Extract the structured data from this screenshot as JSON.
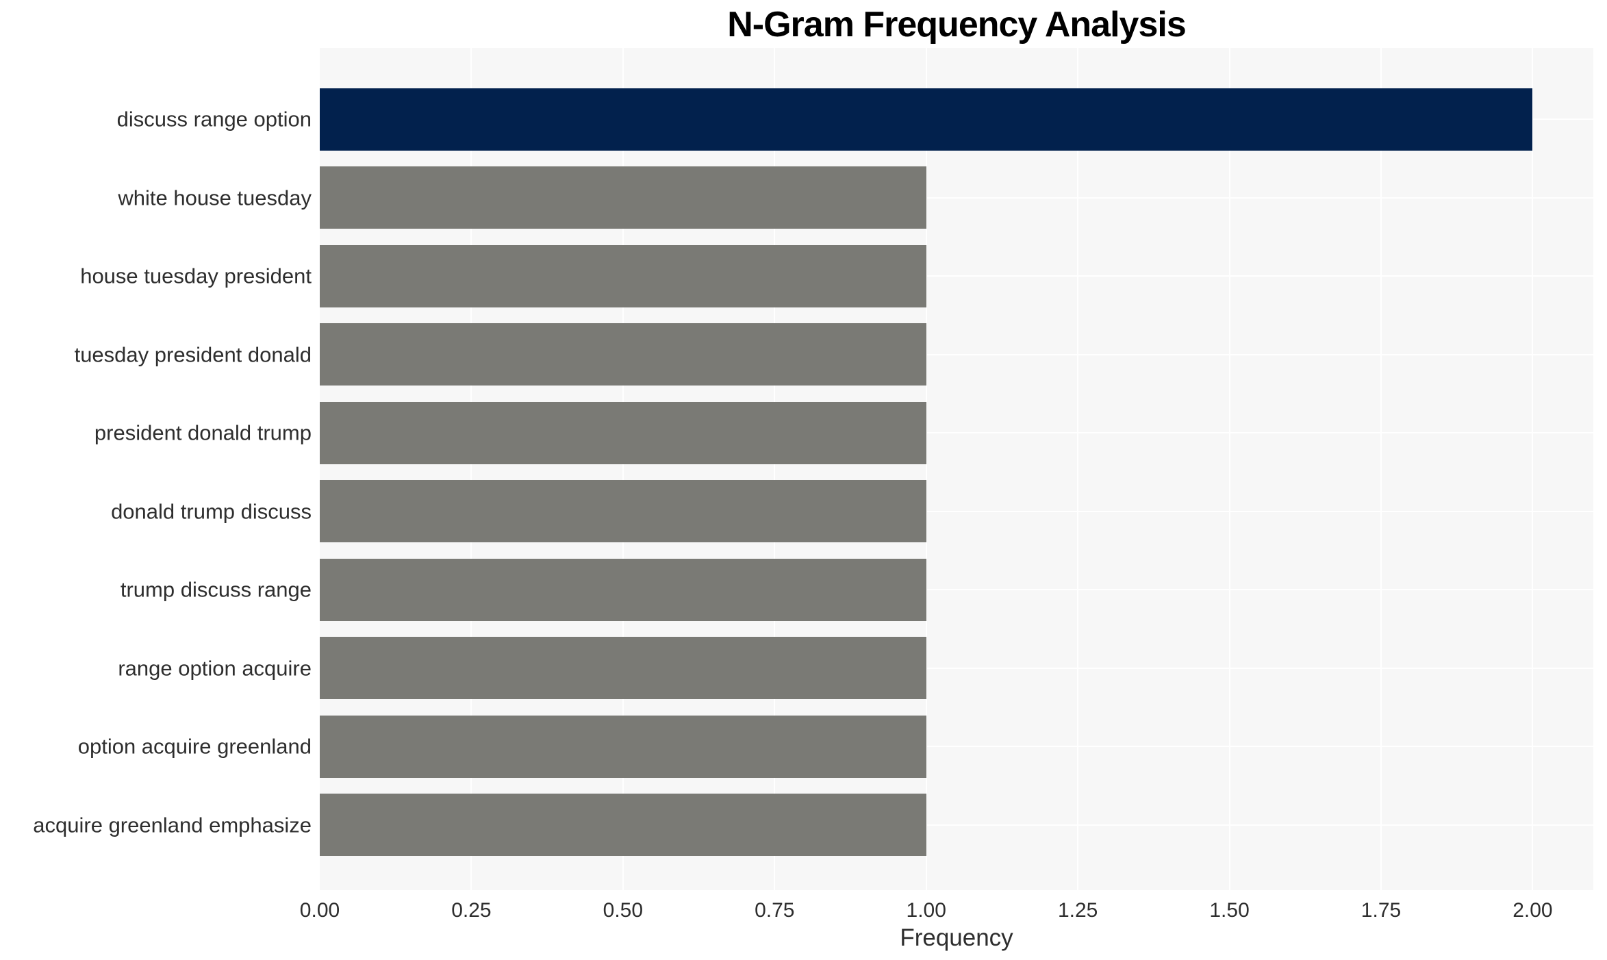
{
  "chart_data": {
    "type": "bar",
    "orientation": "horizontal",
    "title": "N-Gram Frequency Analysis",
    "xlabel": "Frequency",
    "ylabel": "",
    "categories": [
      "discuss range option",
      "white house tuesday",
      "house tuesday president",
      "tuesday president donald",
      "president donald trump",
      "donald trump discuss",
      "trump discuss range",
      "range option acquire",
      "option acquire greenland",
      "acquire greenland emphasize"
    ],
    "values": [
      2,
      1,
      1,
      1,
      1,
      1,
      1,
      1,
      1,
      1
    ],
    "xlim": [
      0,
      2.1
    ],
    "xticks": [
      0,
      0.25,
      0.5,
      0.75,
      1.0,
      1.25,
      1.5,
      1.75,
      2.0
    ],
    "xtick_labels": [
      "0.00",
      "0.25",
      "0.50",
      "0.75",
      "1.00",
      "1.25",
      "1.50",
      "1.75",
      "2.00"
    ],
    "grid": true,
    "legend": false,
    "colors": {
      "bar_highlight": "#02214d",
      "bar_default": "#7a7a75",
      "plot_background": "#f7f7f7",
      "gridline": "#ffffff",
      "title_color": "#000000",
      "tick_label_color": "#2e2e2e",
      "figure_background": "#ffffff"
    }
  }
}
